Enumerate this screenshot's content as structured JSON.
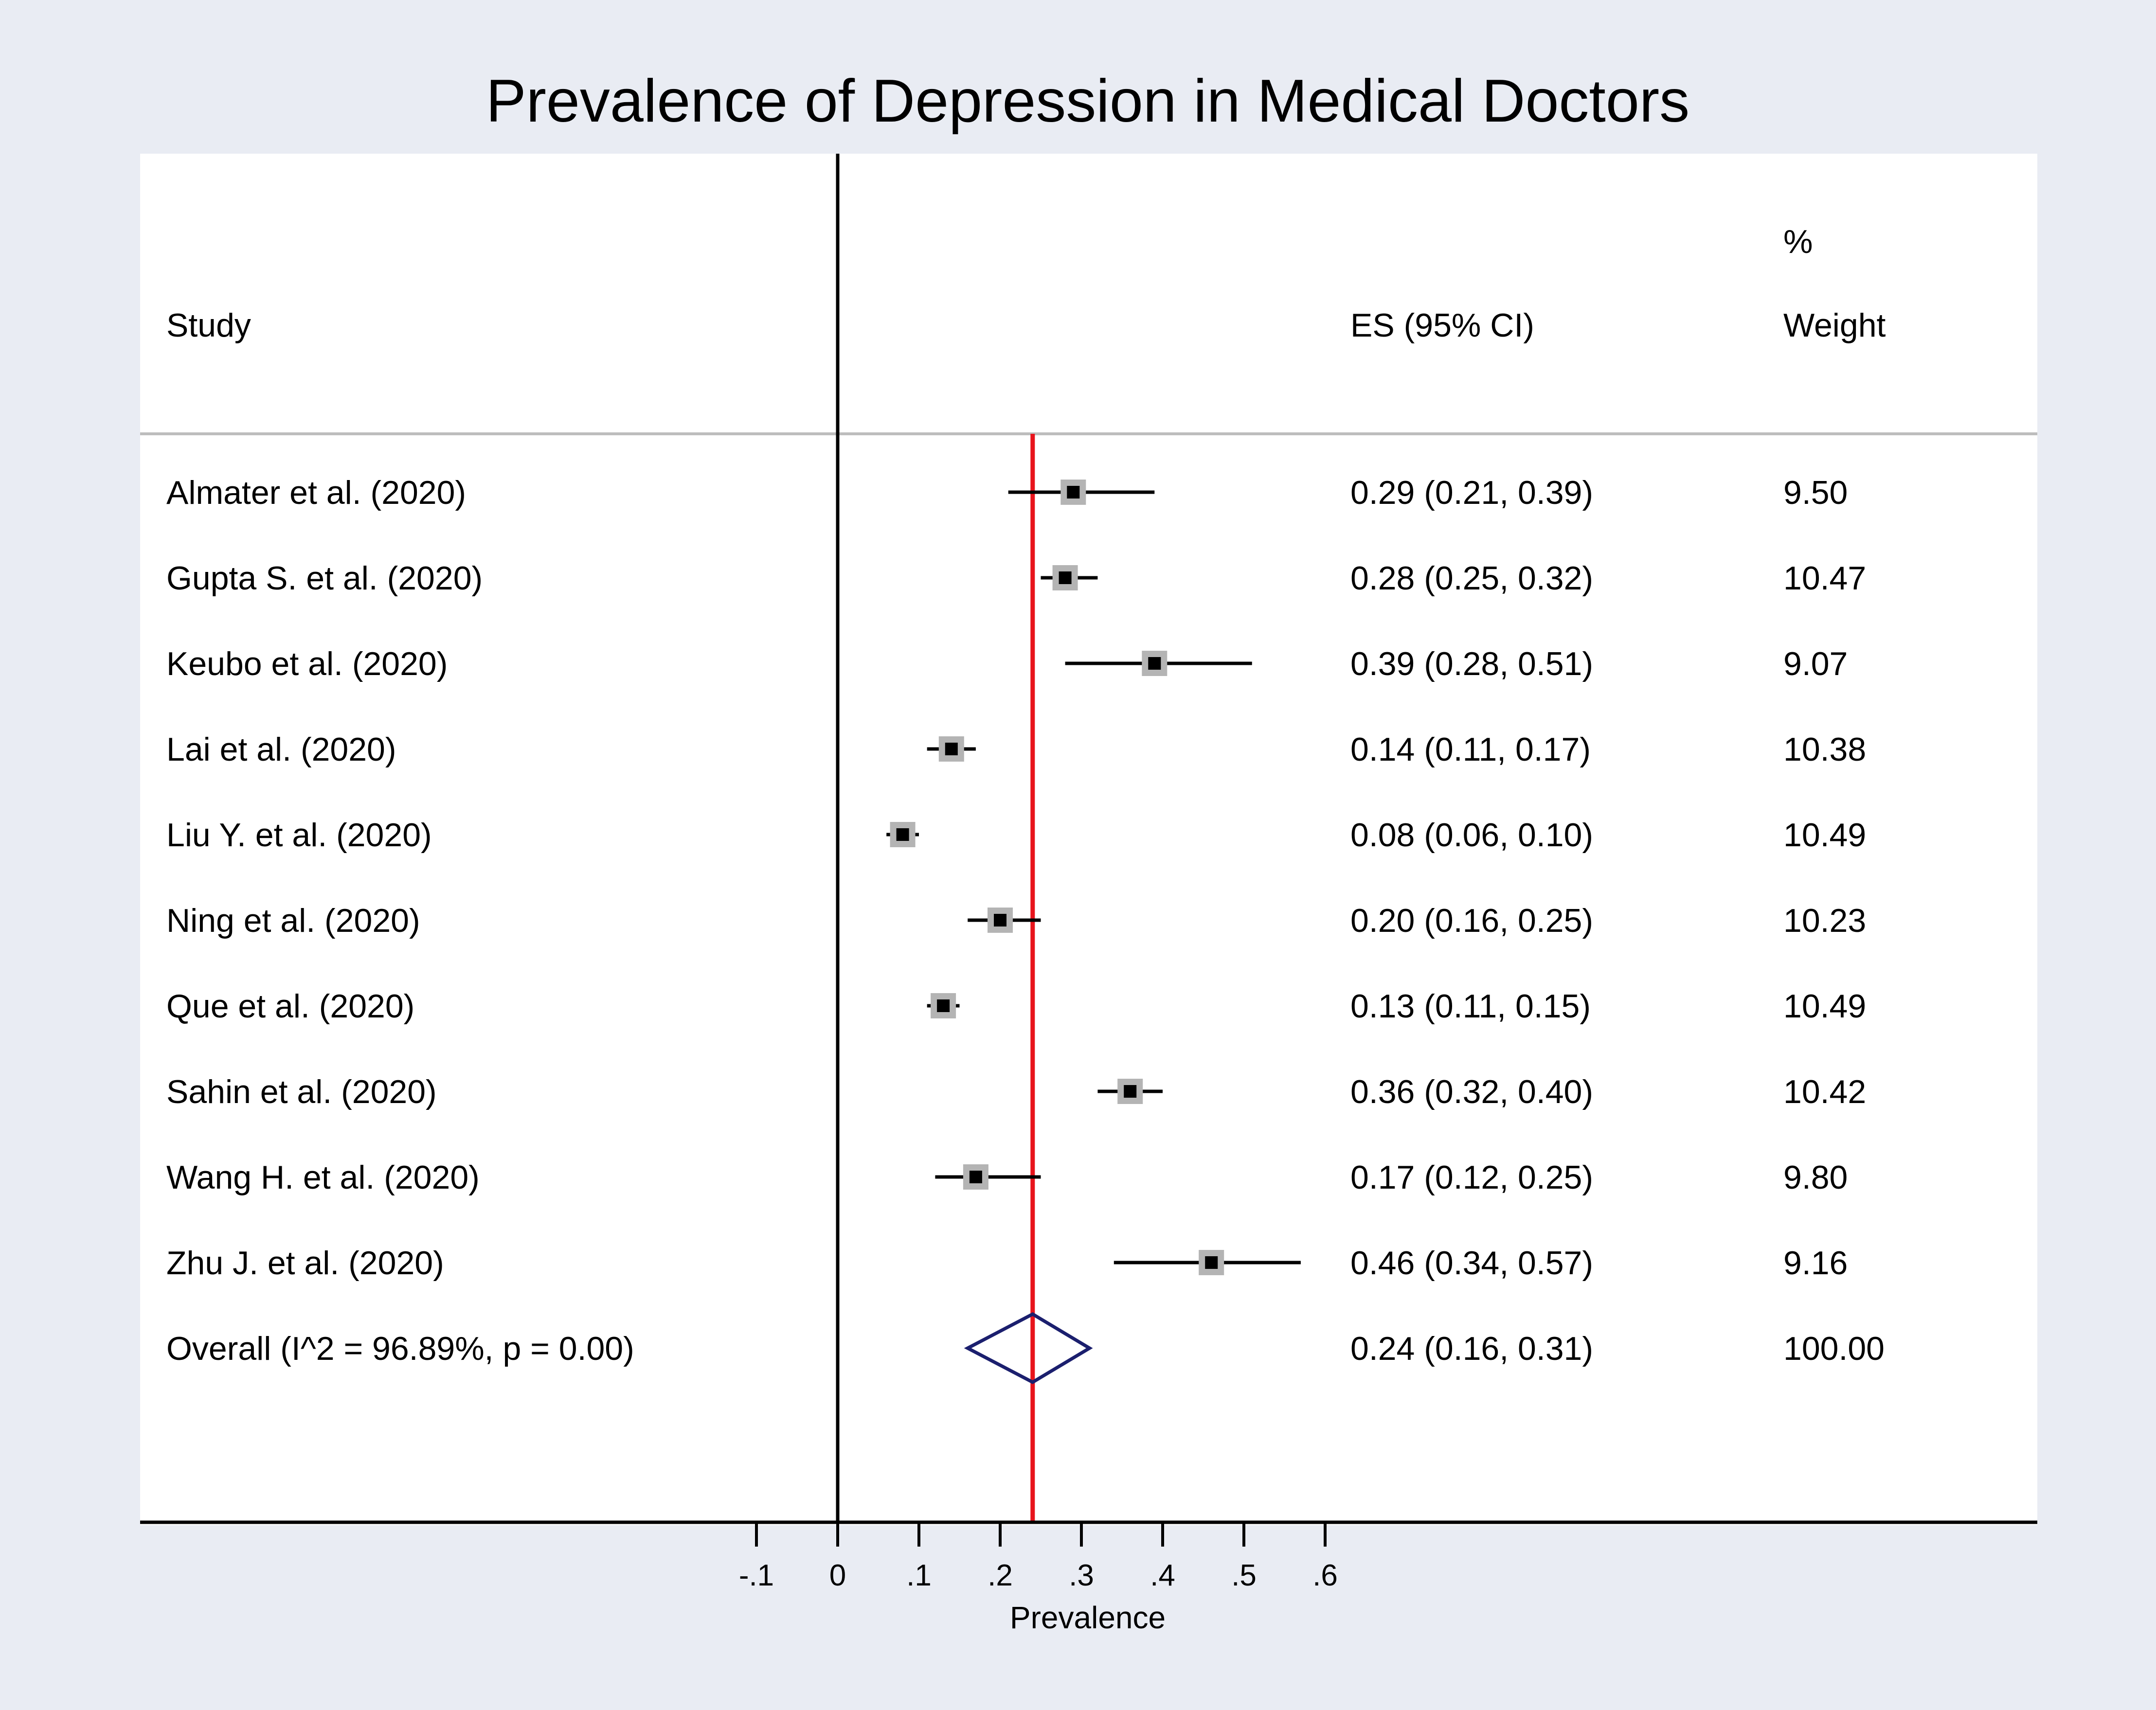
{
  "chart_data": {
    "type": "forest",
    "title": "Prevalence of Depression in Medical Doctors",
    "columns": {
      "study": "Study",
      "es": "ES (95% CI)",
      "weight_line1": "%",
      "weight_line2": "Weight"
    },
    "studies": [
      {
        "label": "Almater et al. (2020)",
        "es": 0.29,
        "lo": 0.21,
        "hi": 0.39,
        "es_text": "0.29 (0.21, 0.39)",
        "weight": 9.5,
        "weight_text": "9.50"
      },
      {
        "label": "Gupta S. et al. (2020)",
        "es": 0.28,
        "lo": 0.25,
        "hi": 0.32,
        "es_text": "0.28 (0.25, 0.32)",
        "weight": 10.47,
        "weight_text": "10.47"
      },
      {
        "label": "Keubo et al.  (2020)",
        "es": 0.39,
        "lo": 0.28,
        "hi": 0.51,
        "es_text": "0.39 (0.28, 0.51)",
        "weight": 9.07,
        "weight_text": "9.07"
      },
      {
        "label": "Lai et al. (2020)",
        "es": 0.14,
        "lo": 0.11,
        "hi": 0.17,
        "es_text": "0.14 (0.11, 0.17)",
        "weight": 10.38,
        "weight_text": "10.38"
      },
      {
        "label": "Liu Y. et al. (2020)",
        "es": 0.08,
        "lo": 0.06,
        "hi": 0.1,
        "es_text": "0.08 (0.06, 0.10)",
        "weight": 10.49,
        "weight_text": "10.49"
      },
      {
        "label": "Ning et al. (2020)",
        "es": 0.2,
        "lo": 0.16,
        "hi": 0.25,
        "es_text": "0.20 (0.16, 0.25)",
        "weight": 10.23,
        "weight_text": "10.23"
      },
      {
        "label": "Que et al. (2020)",
        "es": 0.13,
        "lo": 0.11,
        "hi": 0.15,
        "es_text": "0.13 (0.11, 0.15)",
        "weight": 10.49,
        "weight_text": "10.49"
      },
      {
        "label": "Sahin et al. (2020)",
        "es": 0.36,
        "lo": 0.32,
        "hi": 0.4,
        "es_text": "0.36 (0.32, 0.40)",
        "weight": 10.42,
        "weight_text": "10.42"
      },
      {
        "label": "Wang H. et al. (2020)",
        "es": 0.17,
        "lo": 0.12,
        "hi": 0.25,
        "es_text": "0.17 (0.12, 0.25)",
        "weight": 9.8,
        "weight_text": "9.80"
      },
      {
        "label": "Zhu J. et al. (2020)",
        "es": 0.46,
        "lo": 0.34,
        "hi": 0.57,
        "es_text": "0.46 (0.34, 0.57)",
        "weight": 9.16,
        "weight_text": "9.16"
      }
    ],
    "overall": {
      "label": "Overall  (I^2 = 96.89%, p = 0.00)",
      "es": 0.24,
      "lo": 0.16,
      "hi": 0.31,
      "es_text": "0.24 (0.16, 0.31)",
      "weight_text": "100.00"
    },
    "xlabel": "Prevalence",
    "xticks": [
      -0.1,
      0,
      0.1,
      0.2,
      0.3,
      0.4,
      0.5,
      0.6
    ],
    "xtick_labels": [
      "-.1",
      "0",
      ".1",
      ".2",
      ".3",
      ".4",
      ".5",
      ".6"
    ],
    "null_line": 0,
    "pooled_line": 0.24,
    "colors": {
      "background": "#e9ecf3",
      "plot_bg": "#ffffff",
      "pooled_line": "#e8141c",
      "diamond": "#1b1f6e",
      "marker": "#000000",
      "weight_box": "#b4b4b4",
      "separator": "#bdbdbd"
    }
  }
}
